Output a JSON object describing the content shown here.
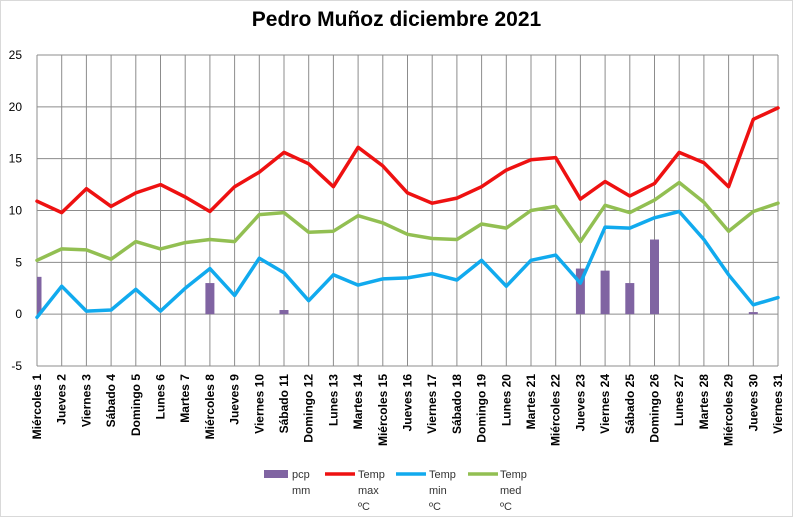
{
  "chart_data": {
    "type": "line",
    "title": "Pedro Muñoz diciembre 2021",
    "categories": [
      "Miércoles 1",
      "Jueves 2",
      "Viernes 3",
      "Sábado 4",
      "Domingo 5",
      "Lunes 6",
      "Martes 7",
      "Miércoles 8",
      "Jueves 9",
      "Viernes 10",
      "Sábado 11",
      "Domingo 12",
      "Lunes 13",
      "Martes 14",
      "Miércoles 15",
      "Jueves 16",
      "Viernes 17",
      "Sábado 18",
      "Domingo 19",
      "Lunes 20",
      "Martes 21",
      "Miércoles 22",
      "Jueves 23",
      "Viernes 24",
      "Sábado 25",
      "Domingo 26",
      "Lunes 27",
      "Martes 28",
      "Miércoles 29",
      "Jueves 30",
      "Viernes 31"
    ],
    "ylim": [
      -5,
      25
    ],
    "yticks": [
      "-5",
      "0",
      "5",
      "10",
      "15",
      "20",
      "25"
    ],
    "grid": true,
    "legend_position": "bottom",
    "series": [
      {
        "name": "pcp mm",
        "type": "bar",
        "color": "#8064a2",
        "values": [
          3.6,
          0,
          0,
          0,
          0,
          0,
          0,
          3.0,
          0,
          0,
          0.4,
          0,
          0,
          0,
          0,
          0,
          0,
          0,
          0,
          0,
          0,
          0,
          4.4,
          4.2,
          3.0,
          7.2,
          0,
          0,
          0,
          0.2,
          0
        ]
      },
      {
        "name": "Temp max ºC",
        "type": "line",
        "color": "#ee1111",
        "values": [
          10.9,
          9.8,
          12.1,
          10.4,
          11.7,
          12.5,
          11.3,
          9.9,
          12.3,
          13.7,
          15.6,
          14.5,
          12.3,
          16.1,
          14.3,
          11.7,
          10.7,
          11.2,
          12.3,
          13.9,
          14.9,
          15.1,
          11.1,
          12.8,
          11.4,
          12.6,
          15.6,
          14.6,
          12.3,
          18.8,
          19.9
        ]
      },
      {
        "name": "Temp min ºC",
        "type": "line",
        "color": "#11aaee",
        "values": [
          -0.3,
          2.7,
          0.3,
          0.4,
          2.4,
          0.3,
          2.5,
          4.4,
          1.8,
          5.4,
          4.0,
          1.3,
          3.8,
          2.8,
          3.4,
          3.5,
          3.9,
          3.3,
          5.2,
          2.7,
          5.2,
          5.7,
          3.0,
          8.4,
          8.3,
          9.3,
          9.9,
          7.2,
          3.8,
          0.9,
          1.6
        ]
      },
      {
        "name": "Temp med ºC",
        "type": "line",
        "color": "#92bf52",
        "values": [
          5.2,
          6.3,
          6.2,
          5.3,
          7.0,
          6.3,
          6.9,
          7.2,
          7.0,
          9.6,
          9.8,
          7.9,
          8.0,
          9.5,
          8.8,
          7.7,
          7.3,
          7.2,
          8.7,
          8.3,
          10.0,
          10.4,
          7.0,
          10.5,
          9.8,
          11.0,
          12.7,
          10.8,
          8.0,
          9.9,
          10.7
        ]
      }
    ],
    "legend": [
      {
        "line1": "pcp",
        "line2": "mm",
        "line3": ""
      },
      {
        "line1": "Temp",
        "line2": "max",
        "line3": "ºC"
      },
      {
        "line1": "Temp",
        "line2": "min",
        "line3": "ºC"
      },
      {
        "line1": "Temp",
        "line2": "med",
        "line3": "ºC"
      }
    ]
  }
}
